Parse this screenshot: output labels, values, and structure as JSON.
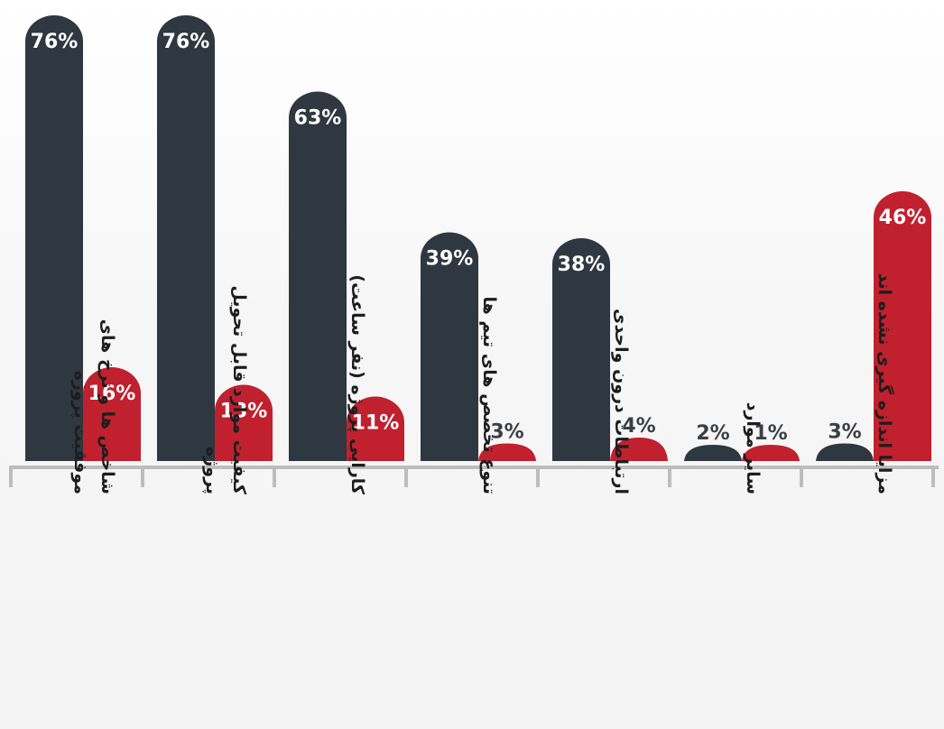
{
  "chart_data": {
    "type": "bar",
    "categories": [
      [
        "شاخص ها و نرخ های",
        "موفقیت پروژه"
      ],
      [
        "کیفیت موارد قابل تحویل",
        "پروژه"
      ],
      [
        "کارایی پروژه (نفر ساعت)"
      ],
      [
        "تنوع تخصص های تیم ها"
      ],
      [
        "ارتباطات درون واحدی"
      ],
      [
        "سایر موارد"
      ],
      [
        "مزایا اندازه گیری نشده اند"
      ]
    ],
    "series": [
      {
        "values": [
          76,
          76,
          63,
          39,
          38,
          2,
          3
        ],
        "color": "#2f3740"
      },
      {
        "values": [
          16,
          13,
          11,
          3,
          4,
          1,
          46
        ],
        "color": "#c1202e"
      }
    ],
    "value_format": "%",
    "ylim": [
      0,
      80
    ],
    "grid": false,
    "legend": "none"
  }
}
